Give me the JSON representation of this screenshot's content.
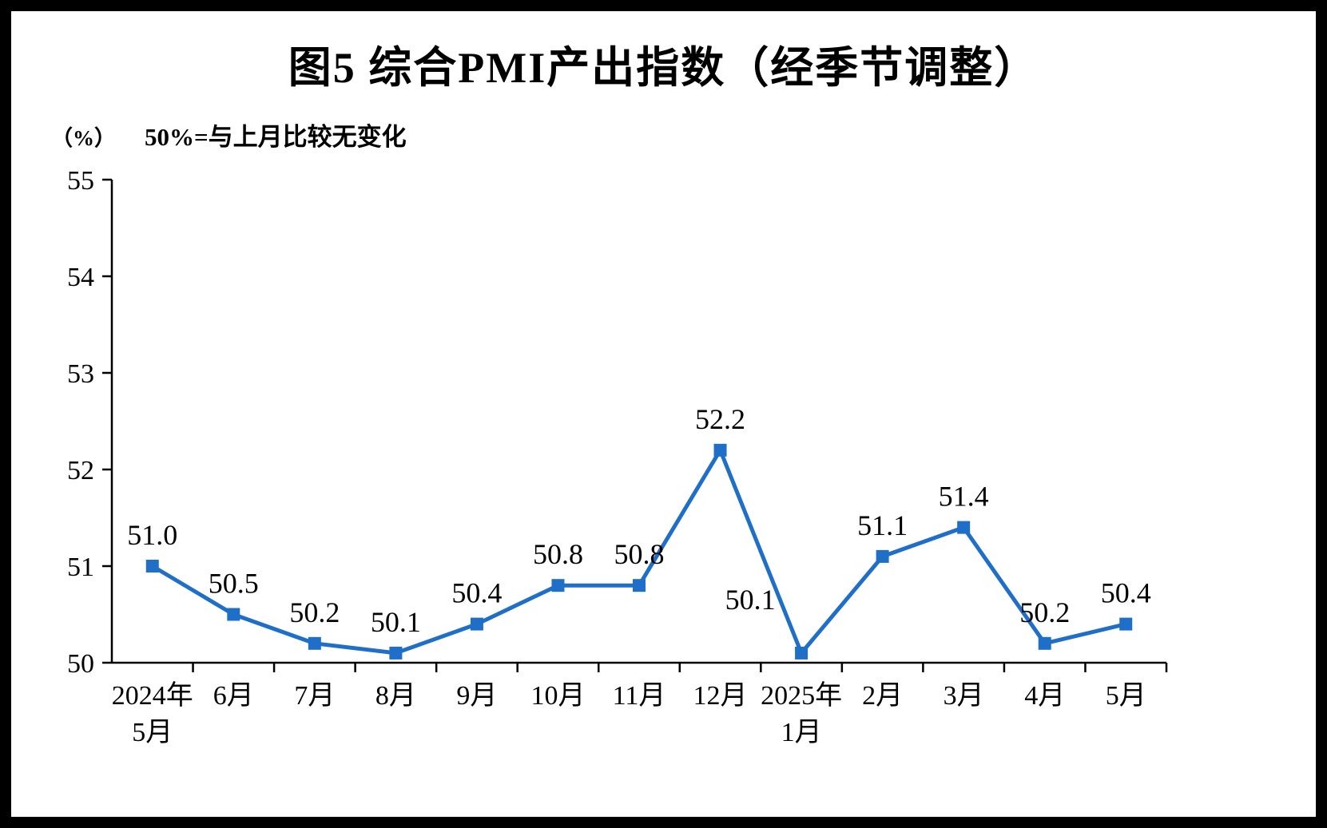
{
  "title": "图5  综合PMI产出指数（经季节调整）",
  "unit_label": "（%）",
  "subtitle": "50%=与上月比较无变化",
  "chart_data": {
    "type": "line",
    "series_name": "综合PMI产出指数",
    "categories": [
      "2024年\n5月",
      "6月",
      "7月",
      "8月",
      "9月",
      "10月",
      "11月",
      "12月",
      "2025年\n1月",
      "2月",
      "3月",
      "4月",
      "5月"
    ],
    "values": [
      51.0,
      50.5,
      50.2,
      50.1,
      50.4,
      50.8,
      50.8,
      52.2,
      50.1,
      51.1,
      51.4,
      50.2,
      50.4
    ],
    "data_labels": [
      "51.0",
      "50.5",
      "50.2",
      "50.1",
      "50.4",
      "50.8",
      "50.8",
      "52.2",
      "50.1",
      "51.1",
      "51.4",
      "50.2",
      "50.4"
    ],
    "ylim": [
      50,
      55
    ],
    "yticks": [
      50,
      51,
      52,
      53,
      54,
      55
    ],
    "xlabel": "",
    "ylabel": "（%）",
    "grid": false,
    "legend": "none",
    "line_color": "#1f6fc8",
    "marker": "square",
    "axis_color": "#000000",
    "label_offsets": {
      "8": {
        "dx": -64,
        "dy": -28
      }
    }
  }
}
